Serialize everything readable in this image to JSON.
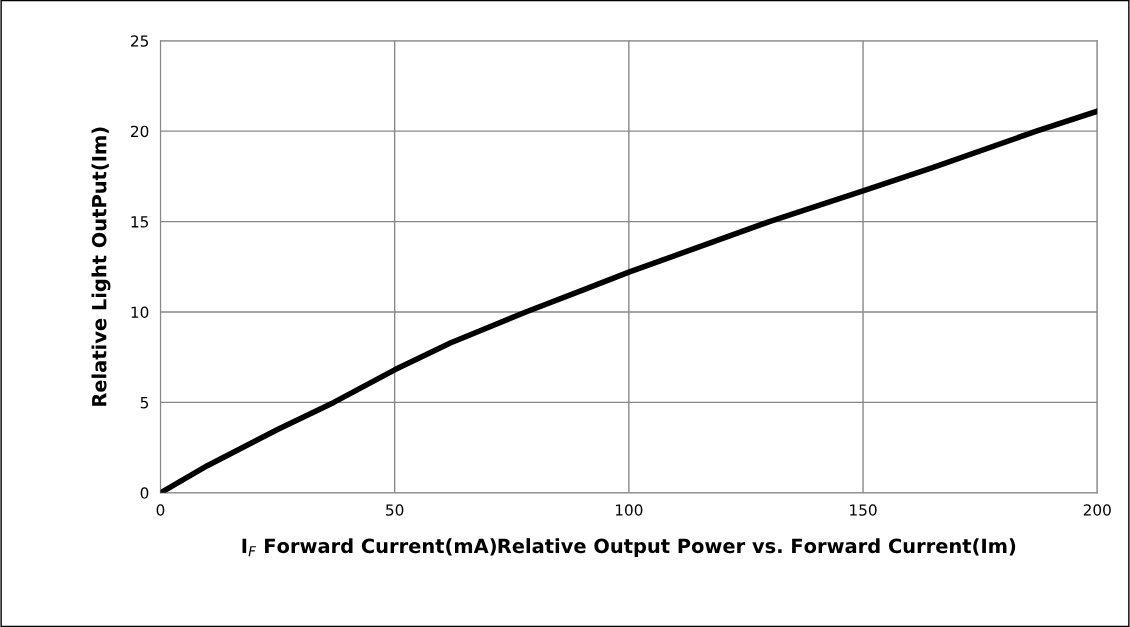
{
  "chart_data": {
    "type": "line",
    "xlabel": "I$_{F}$ Forward Current(mA)Relative Output Power vs. Forward Current(Im)",
    "ylabel": "Relative Light OutPut(Im)",
    "x": [
      0,
      10,
      25,
      37,
      50,
      62,
      78,
      90,
      100,
      115,
      130,
      150,
      165,
      187,
      200
    ],
    "series": [
      {
        "color": "#000000",
        "values": [
          0,
          1.5,
          3.5,
          5,
          6.8,
          8.3,
          10,
          11.2,
          12.2,
          13.6,
          15,
          16.7,
          18,
          20,
          21.1
        ]
      }
    ],
    "xlim": [
      0,
      200
    ],
    "xticks": [
      0,
      50,
      100,
      150,
      200
    ],
    "ylim": [
      0,
      25
    ],
    "yticks": [
      0,
      5,
      10,
      15,
      20,
      25
    ],
    "grid": true,
    "legend": false,
    "marker": "none",
    "line_style": "solid"
  }
}
